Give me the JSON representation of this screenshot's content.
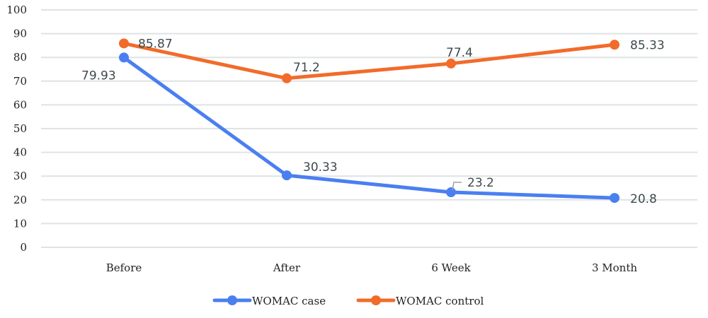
{
  "chart_data": {
    "type": "line",
    "title": "",
    "xlabel": "",
    "ylabel": "",
    "categories": [
      "Before",
      "After",
      "6 Week",
      "3 Month"
    ],
    "ylim": [
      0,
      100
    ],
    "yticks": [
      0,
      10,
      20,
      30,
      40,
      50,
      60,
      70,
      80,
      90,
      100
    ],
    "grid": true,
    "legend_position": "bottom",
    "series": [
      {
        "name": "WOMAC case",
        "color": "#4a7ff0",
        "values": [
          79.93,
          30.33,
          23.2,
          20.8
        ],
        "labels": [
          "79.93",
          "30.33",
          "23.2",
          "20.8"
        ]
      },
      {
        "name": "WOMAC control",
        "color": "#f26b2a",
        "values": [
          85.87,
          71.2,
          77.4,
          85.33
        ],
        "labels": [
          "85.87",
          "71.2",
          "77.4",
          "85.33"
        ]
      }
    ]
  }
}
